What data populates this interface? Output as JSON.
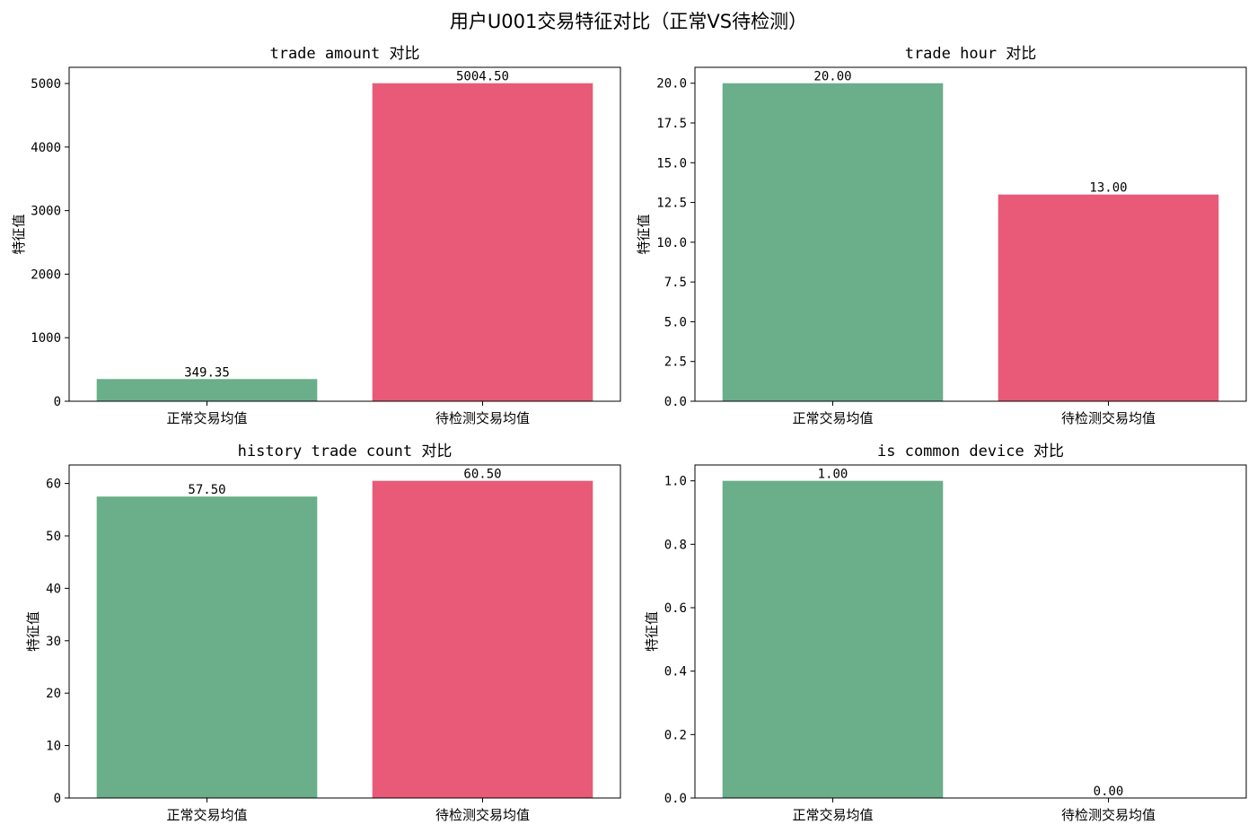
{
  "title": "用户U001交易特征对比（正常VS待检测）",
  "colors": {
    "normal": "#6aae8a",
    "test": "#e85a78"
  },
  "chart_data": [
    {
      "type": "bar",
      "title": "trade amount 对比",
      "ylabel": "特征值",
      "categories": [
        "正常交易均值",
        "待检测交易均值"
      ],
      "values": [
        349.35,
        5004.5
      ],
      "value_labels": [
        "349.35",
        "5004.50"
      ],
      "ylim": [
        0,
        5254.7
      ],
      "yticks": [
        0,
        1000,
        2000,
        3000,
        4000,
        5000
      ],
      "ytick_labels": [
        "0",
        "1000",
        "2000",
        "3000",
        "4000",
        "5000"
      ],
      "grid": false
    },
    {
      "type": "bar",
      "title": "trade hour 对比",
      "ylabel": "特征值",
      "categories": [
        "正常交易均值",
        "待检测交易均值"
      ],
      "values": [
        20.0,
        13.0
      ],
      "value_labels": [
        "20.00",
        "13.00"
      ],
      "ylim": [
        0,
        21
      ],
      "yticks": [
        0,
        2.5,
        5,
        7.5,
        10,
        12.5,
        15,
        17.5,
        20
      ],
      "ytick_labels": [
        "0.0",
        "2.5",
        "5.0",
        "7.5",
        "10.0",
        "12.5",
        "15.0",
        "17.5",
        "20.0"
      ],
      "grid": false
    },
    {
      "type": "bar",
      "title": "history trade count 对比",
      "ylabel": "特征值",
      "categories": [
        "正常交易均值",
        "待检测交易均值"
      ],
      "values": [
        57.5,
        60.5
      ],
      "value_labels": [
        "57.50",
        "60.50"
      ],
      "ylim": [
        0,
        63.525
      ],
      "yticks": [
        0,
        10,
        20,
        30,
        40,
        50,
        60
      ],
      "ytick_labels": [
        "0",
        "10",
        "20",
        "30",
        "40",
        "50",
        "60"
      ],
      "grid": false
    },
    {
      "type": "bar",
      "title": "is common device 对比",
      "ylabel": "特征值",
      "categories": [
        "正常交易均值",
        "待检测交易均值"
      ],
      "values": [
        1.0,
        0.0
      ],
      "value_labels": [
        "1.00",
        "0.00"
      ],
      "ylim": [
        0,
        1.05
      ],
      "yticks": [
        0,
        0.2,
        0.4,
        0.6,
        0.8,
        1.0
      ],
      "ytick_labels": [
        "0.0",
        "0.2",
        "0.4",
        "0.6",
        "0.8",
        "1.0"
      ],
      "grid": false
    }
  ]
}
